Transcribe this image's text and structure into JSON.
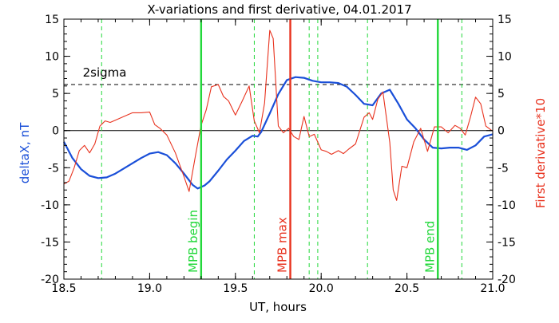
{
  "chart_data": {
    "type": "line",
    "title": "X-variations and first derivative, 04.01.2017",
    "xlabel": "UT, hours",
    "ylabel_left": "deltaX, nT",
    "ylabel_right": "First derivative*10",
    "xlim": [
      18.5,
      21.0
    ],
    "ylim": [
      -20,
      15
    ],
    "xticks": [
      "18.5",
      "19.0",
      "19.5",
      "20.0",
      "20.5",
      "21.0"
    ],
    "yticks": [
      "-20",
      "-15",
      "-10",
      "-5",
      "0",
      "5",
      "10",
      "15"
    ],
    "colors": {
      "deltaX": "#1a4fd8",
      "derivative": "#e8321e",
      "mpb_bounds": "#22d83a",
      "mpb_max": "#e8321e",
      "event_dashes": "#22d83a"
    },
    "threshold": {
      "label": "2sigma",
      "y": 6.2
    },
    "zero_line": 0,
    "vertical_markers": [
      {
        "label": "MPB begin",
        "x": 19.3,
        "style": "solid-green"
      },
      {
        "label": "MPB max",
        "x": 19.82,
        "style": "solid-red"
      },
      {
        "label": "MPB end",
        "x": 20.68,
        "style": "solid-green"
      }
    ],
    "event_lines": [
      18.72,
      19.61,
      19.93,
      19.98,
      20.27,
      20.82
    ],
    "series": [
      {
        "name": "deltaX",
        "axis": "left",
        "x": [
          18.5,
          18.55,
          18.6,
          18.65,
          18.7,
          18.75,
          18.8,
          18.85,
          18.9,
          18.95,
          19.0,
          19.05,
          19.1,
          19.15,
          19.2,
          19.25,
          19.28,
          19.32,
          19.35,
          19.4,
          19.45,
          19.5,
          19.55,
          19.6,
          19.63,
          19.65,
          19.7,
          19.75,
          19.8,
          19.85,
          19.9,
          19.95,
          20.0,
          20.05,
          20.1,
          20.15,
          20.2,
          20.25,
          20.3,
          20.35,
          20.4,
          20.45,
          20.5,
          20.55,
          20.6,
          20.65,
          20.7,
          20.75,
          20.8,
          20.85,
          20.9,
          20.95,
          21.0
        ],
        "values": [
          -1.5,
          -3.7,
          -5.2,
          -6.1,
          -6.4,
          -6.3,
          -5.8,
          -5.1,
          -4.4,
          -3.7,
          -3.1,
          -2.9,
          -3.3,
          -4.4,
          -5.8,
          -7.3,
          -7.8,
          -7.4,
          -6.8,
          -5.4,
          -3.9,
          -2.7,
          -1.4,
          -0.7,
          -0.8,
          -0.2,
          2.3,
          4.9,
          6.8,
          7.2,
          7.1,
          6.7,
          6.5,
          6.5,
          6.4,
          5.9,
          4.8,
          3.6,
          3.4,
          5.0,
          5.5,
          3.6,
          1.5,
          0.3,
          -1.2,
          -2.3,
          -2.4,
          -2.3,
          -2.3,
          -2.6,
          -2.0,
          -0.8,
          -0.5
        ]
      },
      {
        "name": "First derivative*10",
        "axis": "right",
        "x": [
          18.5,
          18.53,
          18.56,
          18.59,
          18.62,
          18.65,
          18.68,
          18.71,
          18.74,
          18.77,
          18.8,
          18.85,
          18.9,
          18.95,
          19.0,
          19.03,
          19.06,
          19.1,
          19.15,
          19.2,
          19.23,
          19.27,
          19.3,
          19.33,
          19.36,
          19.4,
          19.43,
          19.46,
          19.5,
          19.54,
          19.58,
          19.61,
          19.64,
          19.67,
          19.7,
          19.72,
          19.75,
          19.78,
          19.81,
          19.84,
          19.87,
          19.9,
          19.93,
          19.96,
          20.0,
          20.03,
          20.06,
          20.1,
          20.13,
          20.16,
          20.2,
          20.25,
          20.28,
          20.3,
          20.33,
          20.36,
          20.4,
          20.42,
          20.44,
          20.47,
          20.5,
          20.54,
          20.58,
          20.62,
          20.66,
          20.7,
          20.74,
          20.78,
          20.81,
          20.84,
          20.87,
          20.9,
          20.93,
          20.96,
          21.0
        ],
        "values": [
          -7.2,
          -6.8,
          -5.0,
          -2.7,
          -2.0,
          -3.0,
          -1.8,
          0.6,
          1.3,
          1.1,
          1.4,
          1.9,
          2.4,
          2.4,
          2.5,
          0.8,
          0.3,
          -0.6,
          -3.0,
          -6.2,
          -8.2,
          -3.0,
          0.7,
          2.8,
          5.9,
          6.2,
          4.6,
          4.0,
          2.1,
          4.0,
          6.0,
          1.3,
          -0.3,
          3.7,
          13.5,
          12.4,
          0.6,
          -0.3,
          0.3,
          -0.8,
          -1.2,
          1.9,
          -0.8,
          -0.5,
          -2.6,
          -2.8,
          -3.2,
          -2.7,
          -3.1,
          -2.5,
          -1.8,
          1.8,
          2.4,
          1.5,
          4.2,
          5.2,
          -1.6,
          -8.0,
          -9.4,
          -4.8,
          -5.0,
          -1.5,
          0.3,
          -2.8,
          0.5,
          0.5,
          -0.3,
          0.7,
          0.3,
          -0.6,
          1.8,
          4.5,
          3.6,
          0.6,
          -0.1
        ]
      }
    ]
  }
}
